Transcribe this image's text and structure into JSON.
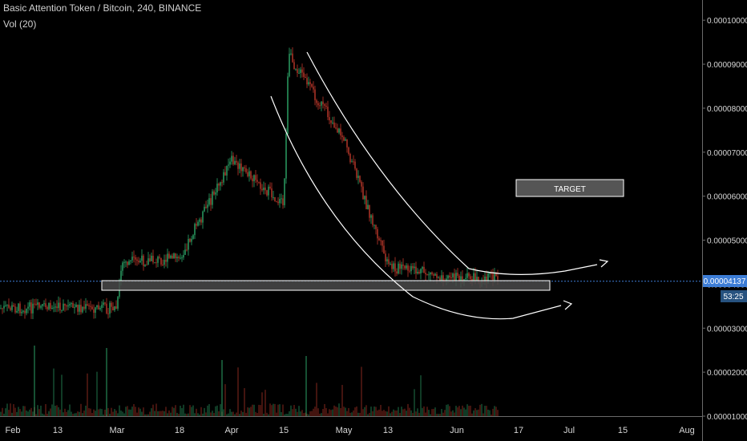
{
  "header": {
    "title": "Basic Attention Token / Bitcoin, 240, BINANCE",
    "indicator": "Vol (20)"
  },
  "annotations": {
    "target_label": "TARGET",
    "price_label": "0.00004137",
    "countdown_label": "53:25"
  },
  "colors": {
    "up": "#2ea86a",
    "down": "#c0392b",
    "price_line": "#3d7dd6",
    "price_label_bg": "#3d7dd6",
    "countdown_bg": "#27527f",
    "axis_text": "#d6d6d6",
    "annotation": "#ffffff",
    "box_fill": "#4a4a4a"
  },
  "chart_data": {
    "type": "candlestick",
    "title": "Basic Attention Token / Bitcoin, 240, BINANCE",
    "x_tick_labels": [
      "Feb",
      "13",
      "Mar",
      "18",
      "Apr",
      "15",
      "May",
      "13",
      "Jun",
      "17",
      "Jul",
      "15",
      "Aug"
    ],
    "y_tick_labels": [
      "0.00001000",
      "0.00002000",
      "0.00003000",
      "0.00004000",
      "0.00005000",
      "0.00006000",
      "0.00007000",
      "0.00008000",
      "0.00009000",
      "0.00010000"
    ],
    "ylim": [
      1e-05,
      0.0001035
    ],
    "series": [
      {
        "name": "price",
        "keypoints": [
          {
            "x": "Feb",
            "y": 3.45e-05
          },
          {
            "x": "13",
            "y": 3.47e-05
          },
          {
            "x": "Mar",
            "y": 3.45e-05
          },
          {
            "x": "Mar",
            "y": 4.48e-05
          },
          {
            "x": "18",
            "y": 4.6e-05
          },
          {
            "x": "Apr",
            "y": 6.8e-05
          },
          {
            "x": "15",
            "y": 5.8e-05
          },
          {
            "x": "15",
            "y": 9.2e-05
          },
          {
            "x": "May",
            "y": 7.3e-05
          },
          {
            "x": "13",
            "y": 4.4e-05
          },
          {
            "x": "Jun",
            "y": 4.14e-05
          }
        ]
      }
    ],
    "volume_indicator": "Vol (20)",
    "current_price": 4.137e-05,
    "annotations": [
      {
        "type": "support_zone",
        "range": [
          4e-05,
          4.13e-05
        ]
      },
      {
        "type": "label",
        "text": "TARGET",
        "y": 6.33e-05
      }
    ],
    "grid": false
  }
}
